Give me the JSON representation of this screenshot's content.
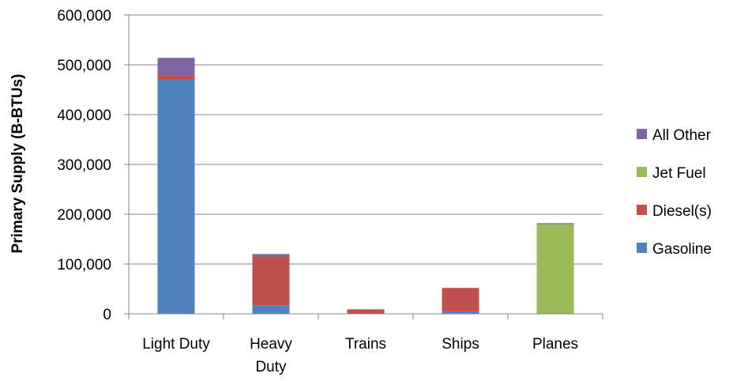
{
  "chart_data": {
    "type": "bar",
    "stacked": true,
    "title": "",
    "xlabel": "",
    "ylabel": "Primary Supply (B-BTUs)",
    "ylim": [
      0,
      600000
    ],
    "yticks": [
      0,
      100000,
      200000,
      300000,
      400000,
      500000,
      600000
    ],
    "ytick_labels": [
      "0",
      "100,000",
      "200,000",
      "300,000",
      "400,000",
      "500,000",
      "600,000"
    ],
    "grid": true,
    "legend_position": "right",
    "categories": [
      [
        "Light Duty"
      ],
      [
        "Heavy",
        "Duty"
      ],
      [
        "Trains"
      ],
      [
        "Ships"
      ],
      [
        "Planes"
      ]
    ],
    "series": [
      {
        "name": "Gasoline",
        "color": "#4f81bd",
        "values": [
          470000,
          17000,
          0,
          5000,
          0
        ]
      },
      {
        "name": "Diesel(s)",
        "color": "#c0504d",
        "values": [
          8000,
          98000,
          9000,
          47000,
          0
        ]
      },
      {
        "name": "Jet Fuel",
        "color": "#9bbb59",
        "values": [
          0,
          0,
          0,
          0,
          180000
        ]
      },
      {
        "name": "All Other",
        "color": "#8064a2",
        "values": [
          36000,
          5000,
          0,
          0,
          2000
        ]
      }
    ],
    "legend_order": [
      "All Other",
      "Jet Fuel",
      "Diesel(s)",
      "Gasoline"
    ]
  }
}
